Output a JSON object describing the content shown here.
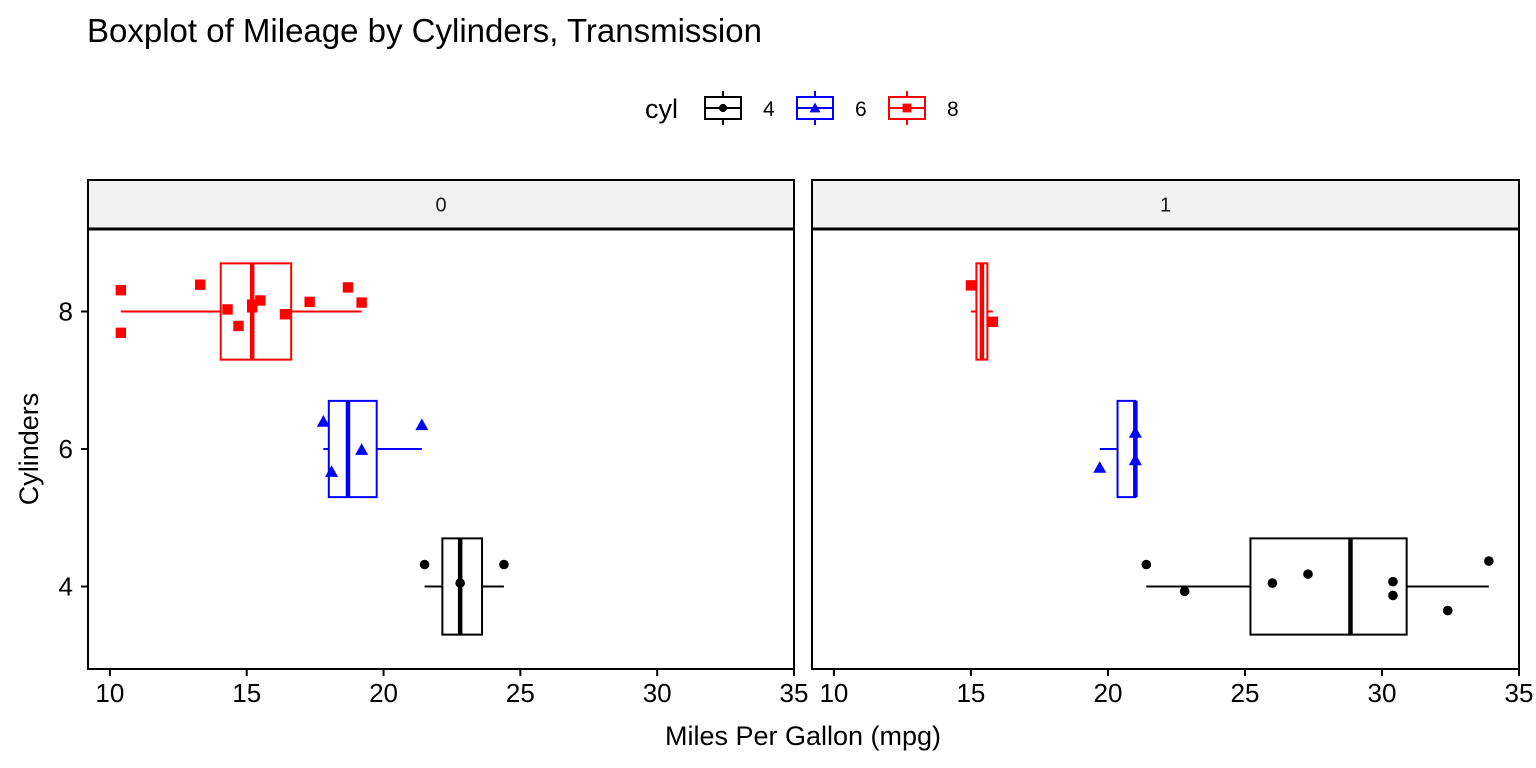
{
  "chart_data": {
    "type": "boxplot",
    "title": "Boxplot of Mileage by Cylinders, Transmission",
    "xlabel": "Miles Per Gallon (mpg)",
    "ylabel": "Cylinders",
    "xlim": [
      9.2,
      35
    ],
    "ylim": [
      2.8,
      9.2
    ],
    "xticks": [
      "10",
      "15",
      "20",
      "25",
      "30",
      "35"
    ],
    "xtick_values": [
      10,
      15,
      20,
      25,
      30,
      35
    ],
    "yticks": [
      "4",
      "6",
      "8"
    ],
    "ytick_values": [
      4,
      6,
      8
    ],
    "grid": false,
    "legend": {
      "title": "cyl",
      "placement": "top-center",
      "entries": [
        {
          "label": "4",
          "color": "#000000",
          "shape": "circle"
        },
        {
          "label": "6",
          "color": "#0000FF",
          "shape": "triangle"
        },
        {
          "label": "8",
          "color": "#FF0000",
          "shape": "square"
        }
      ]
    },
    "facets": [
      {
        "label": "0",
        "groups": [
          {
            "cyl": 4,
            "color": "#000000",
            "shape": "circle",
            "min": 21.5,
            "q1": 22.15,
            "median": 22.8,
            "q3": 23.6,
            "max": 24.4,
            "points": [
              {
                "x": 21.5,
                "y": 4.32
              },
              {
                "x": 22.8,
                "y": 4.05
              },
              {
                "x": 24.4,
                "y": 4.32
              }
            ]
          },
          {
            "cyl": 6,
            "color": "#0000FF",
            "shape": "triangle",
            "min": 17.8,
            "q1": 18.0,
            "median": 18.7,
            "q3": 19.75,
            "max": 21.4,
            "points": [
              {
                "x": 17.8,
                "y": 6.4
              },
              {
                "x": 18.1,
                "y": 5.67
              },
              {
                "x": 19.2,
                "y": 5.99
              },
              {
                "x": 21.4,
                "y": 6.35
              }
            ]
          },
          {
            "cyl": 8,
            "color": "#FF0000",
            "shape": "square",
            "min": 10.4,
            "q1": 14.05,
            "median": 15.2,
            "q3": 16.625,
            "max": 19.2,
            "points": [
              {
                "x": 10.4,
                "y": 8.31
              },
              {
                "x": 10.4,
                "y": 7.69
              },
              {
                "x": 13.3,
                "y": 8.39
              },
              {
                "x": 14.3,
                "y": 8.03
              },
              {
                "x": 14.7,
                "y": 7.79
              },
              {
                "x": 15.2,
                "y": 8.06
              },
              {
                "x": 15.2,
                "y": 8.1
              },
              {
                "x": 15.5,
                "y": 8.16
              },
              {
                "x": 16.4,
                "y": 7.96
              },
              {
                "x": 17.3,
                "y": 8.14
              },
              {
                "x": 18.7,
                "y": 8.35
              },
              {
                "x": 19.2,
                "y": 8.13
              }
            ]
          }
        ]
      },
      {
        "label": "1",
        "groups": [
          {
            "cyl": 4,
            "color": "#000000",
            "shape": "circle",
            "min": 21.4,
            "q1": 25.2,
            "median": 28.85,
            "q3": 30.9,
            "max": 33.9,
            "points": [
              {
                "x": 21.4,
                "y": 4.32
              },
              {
                "x": 22.8,
                "y": 3.93
              },
              {
                "x": 26.0,
                "y": 4.05
              },
              {
                "x": 27.3,
                "y": 4.18
              },
              {
                "x": 30.4,
                "y": 4.07
              },
              {
                "x": 30.4,
                "y": 3.87
              },
              {
                "x": 32.4,
                "y": 3.65
              },
              {
                "x": 33.9,
                "y": 4.37
              }
            ]
          },
          {
            "cyl": 6,
            "color": "#0000FF",
            "shape": "triangle",
            "min": 19.7,
            "q1": 20.35,
            "median": 21.0,
            "q3": 21.0,
            "max": 21.0,
            "points": [
              {
                "x": 19.7,
                "y": 5.73
              },
              {
                "x": 21.0,
                "y": 6.24
              },
              {
                "x": 21.0,
                "y": 5.84
              }
            ]
          },
          {
            "cyl": 8,
            "color": "#FF0000",
            "shape": "square",
            "min": 15.0,
            "q1": 15.2,
            "median": 15.4,
            "q3": 15.6,
            "max": 15.8,
            "points": [
              {
                "x": 15.0,
                "y": 8.38
              },
              {
                "x": 15.8,
                "y": 7.85
              }
            ]
          }
        ]
      }
    ]
  }
}
